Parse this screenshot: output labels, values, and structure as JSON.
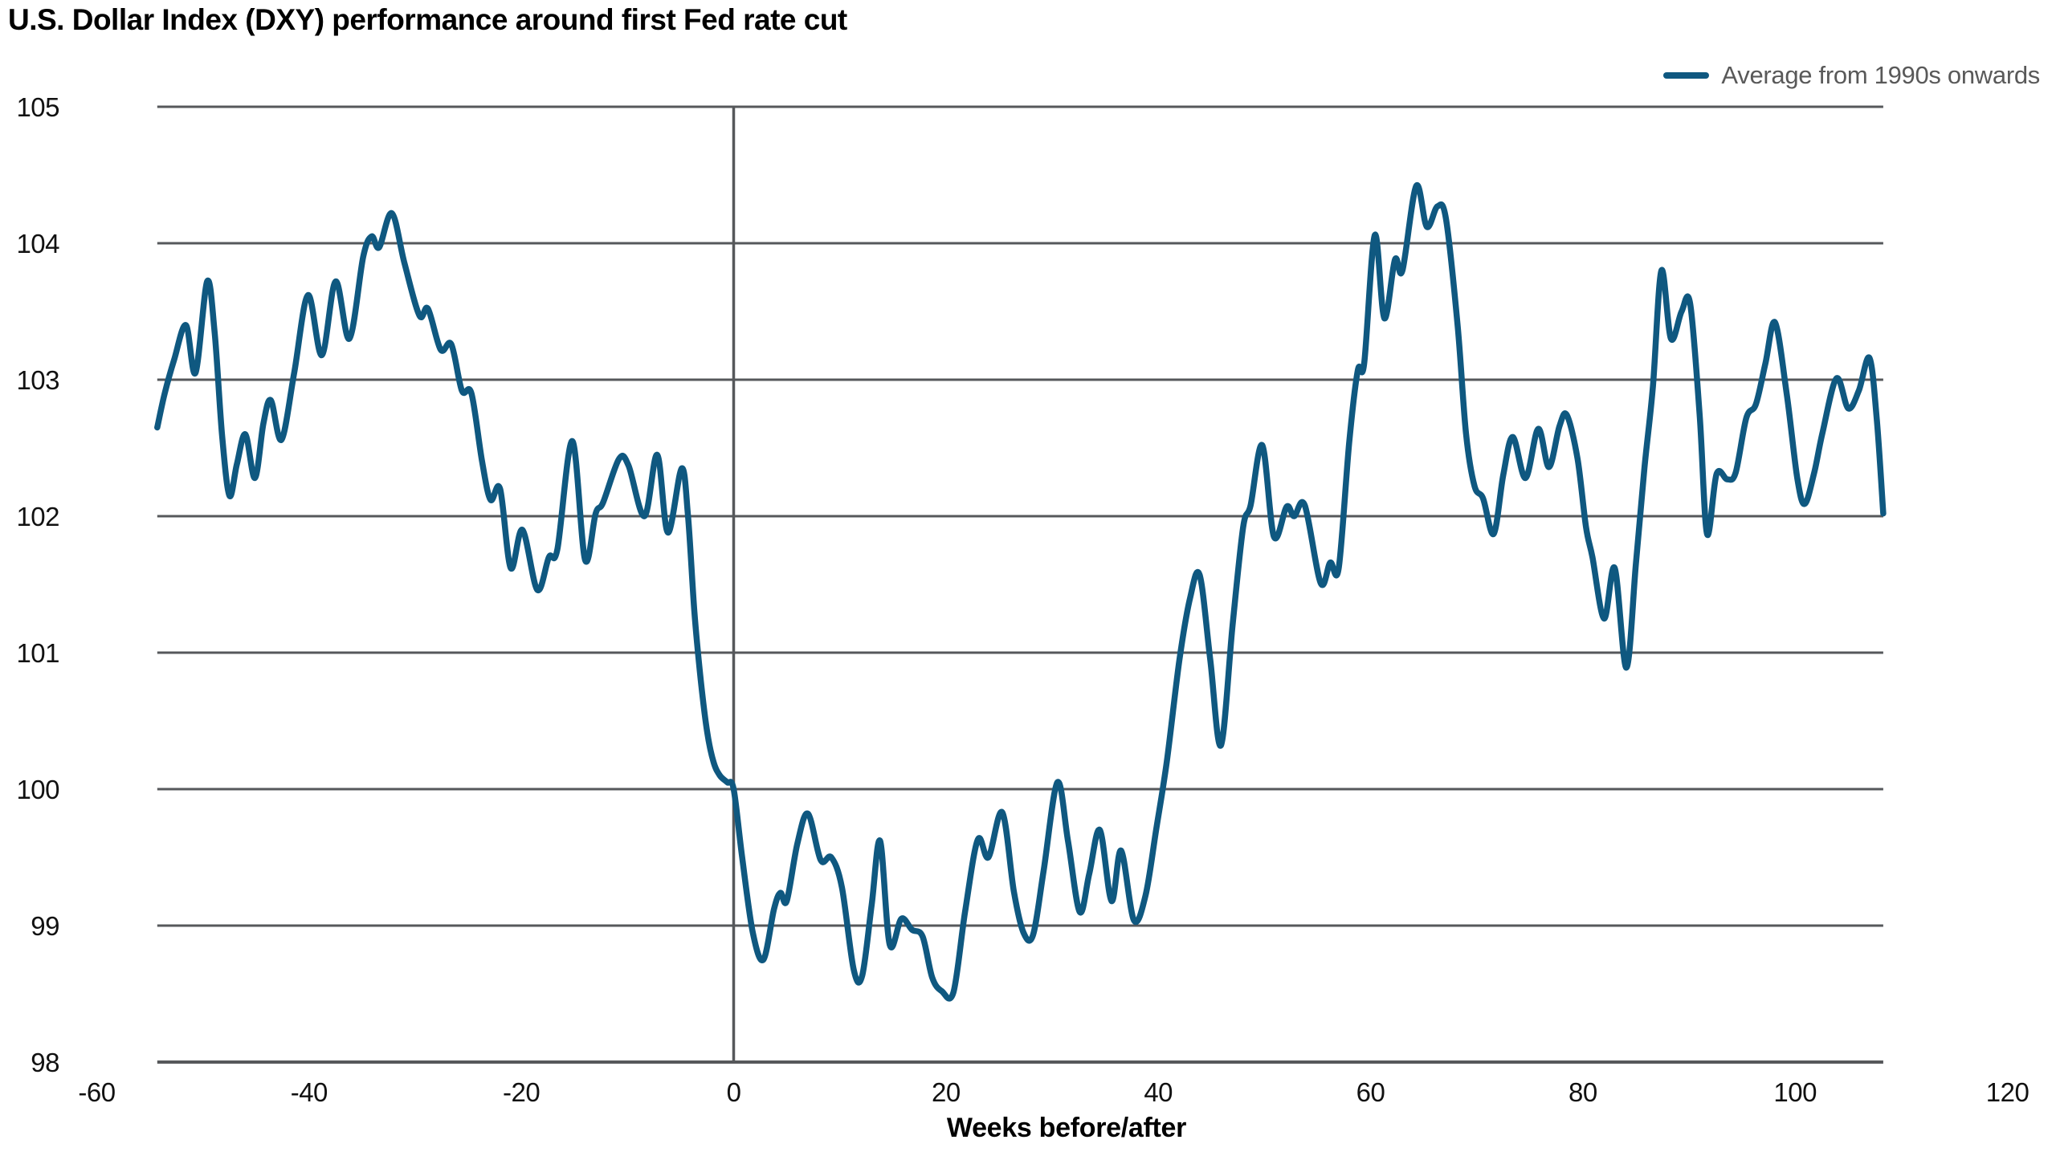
{
  "title": "U.S. Dollar Index (DXY) performance around first Fed rate cut",
  "legend": {
    "label": "Average from 1990s onwards"
  },
  "colors": {
    "line": "#0F5880",
    "grid": "#56585B",
    "axis": "#515457",
    "zero_line": "#56585B",
    "legend_text": "#595959",
    "title_text": "#000000",
    "tick_text": "#111111"
  },
  "chart_data": {
    "type": "line",
    "title": "U.S. Dollar Index (DXY) performance around first Fed rate cut",
    "xlabel": "Weeks before/after",
    "ylabel": "",
    "xlim": [
      -60,
      120
    ],
    "ylim": [
      98,
      105
    ],
    "x_ticks": [
      -60,
      -40,
      -20,
      0,
      20,
      40,
      60,
      80,
      100,
      120
    ],
    "y_ticks": [
      98,
      99,
      100,
      101,
      102,
      103,
      104,
      105
    ],
    "grid": "horizontal",
    "legend_position": "top-right",
    "vertical_reference_line_x": 0,
    "series": [
      {
        "name": "Average from 1990s onwards",
        "points": [
          [
            -54.3,
            102.65
          ],
          [
            -53.6,
            102.9
          ],
          [
            -52.7,
            103.15
          ],
          [
            -51.6,
            103.4
          ],
          [
            -50.7,
            103.05
          ],
          [
            -49.6,
            103.72
          ],
          [
            -48.9,
            103.35
          ],
          [
            -48.2,
            102.6
          ],
          [
            -47.5,
            102.15
          ],
          [
            -46.8,
            102.38
          ],
          [
            -46.0,
            102.6
          ],
          [
            -45.1,
            102.28
          ],
          [
            -44.3,
            102.68
          ],
          [
            -43.6,
            102.85
          ],
          [
            -42.6,
            102.56
          ],
          [
            -41.4,
            103.05
          ],
          [
            -40.1,
            103.62
          ],
          [
            -38.8,
            103.18
          ],
          [
            -37.5,
            103.72
          ],
          [
            -36.2,
            103.3
          ],
          [
            -34.9,
            103.9
          ],
          [
            -34.1,
            104.05
          ],
          [
            -33.4,
            103.97
          ],
          [
            -32.2,
            104.22
          ],
          [
            -31.0,
            103.85
          ],
          [
            -29.6,
            103.47
          ],
          [
            -28.8,
            103.52
          ],
          [
            -27.6,
            103.22
          ],
          [
            -26.6,
            103.26
          ],
          [
            -25.6,
            102.92
          ],
          [
            -24.7,
            102.9
          ],
          [
            -23.7,
            102.4
          ],
          [
            -22.9,
            102.12
          ],
          [
            -22.0,
            102.2
          ],
          [
            -21.0,
            101.62
          ],
          [
            -19.9,
            101.9
          ],
          [
            -18.5,
            101.46
          ],
          [
            -17.4,
            101.7
          ],
          [
            -16.6,
            101.76
          ],
          [
            -15.2,
            102.55
          ],
          [
            -14.0,
            101.68
          ],
          [
            -13.0,
            102.02
          ],
          [
            -12.3,
            102.1
          ],
          [
            -10.8,
            102.42
          ],
          [
            -9.9,
            102.37
          ],
          [
            -8.4,
            102.0
          ],
          [
            -7.2,
            102.45
          ],
          [
            -6.2,
            101.88
          ],
          [
            -4.9,
            102.35
          ],
          [
            -4.3,
            102.0
          ],
          [
            -3.7,
            101.3
          ],
          [
            -3.1,
            100.8
          ],
          [
            -2.5,
            100.42
          ],
          [
            -1.9,
            100.2
          ],
          [
            -1.3,
            100.1
          ],
          [
            -0.6,
            100.05
          ],
          [
            0,
            100.0
          ],
          [
            0.8,
            99.5
          ],
          [
            1.8,
            98.95
          ],
          [
            2.8,
            98.75
          ],
          [
            3.8,
            99.12
          ],
          [
            4.4,
            99.24
          ],
          [
            5.0,
            99.18
          ],
          [
            6.0,
            99.6
          ],
          [
            7.0,
            99.82
          ],
          [
            8.2,
            99.48
          ],
          [
            9.2,
            99.5
          ],
          [
            10.2,
            99.28
          ],
          [
            11.3,
            98.68
          ],
          [
            12.1,
            98.63
          ],
          [
            13.0,
            99.15
          ],
          [
            13.8,
            99.62
          ],
          [
            14.7,
            98.86
          ],
          [
            15.8,
            99.05
          ],
          [
            16.8,
            98.97
          ],
          [
            17.8,
            98.92
          ],
          [
            18.7,
            98.62
          ],
          [
            19.6,
            98.52
          ],
          [
            20.7,
            98.51
          ],
          [
            21.8,
            99.1
          ],
          [
            23.0,
            99.63
          ],
          [
            24.0,
            99.5
          ],
          [
            25.3,
            99.83
          ],
          [
            26.4,
            99.25
          ],
          [
            27.3,
            98.95
          ],
          [
            28.2,
            98.93
          ],
          [
            29.2,
            99.4
          ],
          [
            30.5,
            100.05
          ],
          [
            31.5,
            99.62
          ],
          [
            32.6,
            99.1
          ],
          [
            33.5,
            99.38
          ],
          [
            34.5,
            99.7
          ],
          [
            35.6,
            99.18
          ],
          [
            36.5,
            99.55
          ],
          [
            37.7,
            99.04
          ],
          [
            38.8,
            99.22
          ],
          [
            39.8,
            99.7
          ],
          [
            40.8,
            100.2
          ],
          [
            42.0,
            100.95
          ],
          [
            43.0,
            101.4
          ],
          [
            43.9,
            101.57
          ],
          [
            44.9,
            100.95
          ],
          [
            45.9,
            100.32
          ],
          [
            47.0,
            101.2
          ],
          [
            48.0,
            101.92
          ],
          [
            48.7,
            102.08
          ],
          [
            49.8,
            102.52
          ],
          [
            50.9,
            101.85
          ],
          [
            52.1,
            102.07
          ],
          [
            52.8,
            102.0
          ],
          [
            53.8,
            102.08
          ],
          [
            55.3,
            101.51
          ],
          [
            56.2,
            101.66
          ],
          [
            57.0,
            101.62
          ],
          [
            58.0,
            102.55
          ],
          [
            58.8,
            103.07
          ],
          [
            59.4,
            103.12
          ],
          [
            60.4,
            104.06
          ],
          [
            61.3,
            103.45
          ],
          [
            62.3,
            103.88
          ],
          [
            63.0,
            103.8
          ],
          [
            64.3,
            104.42
          ],
          [
            65.3,
            104.12
          ],
          [
            66.3,
            104.27
          ],
          [
            67.1,
            104.18
          ],
          [
            68.2,
            103.4
          ],
          [
            69.0,
            102.6
          ],
          [
            69.8,
            102.22
          ],
          [
            70.6,
            102.13
          ],
          [
            71.6,
            101.87
          ],
          [
            72.5,
            102.3
          ],
          [
            73.4,
            102.58
          ],
          [
            74.6,
            102.28
          ],
          [
            75.8,
            102.64
          ],
          [
            76.8,
            102.36
          ],
          [
            77.8,
            102.66
          ],
          [
            78.5,
            102.74
          ],
          [
            79.5,
            102.42
          ],
          [
            80.3,
            101.92
          ],
          [
            80.9,
            101.7
          ],
          [
            82.0,
            101.25
          ],
          [
            83.0,
            101.62
          ],
          [
            84.1,
            100.89
          ],
          [
            85.0,
            101.65
          ],
          [
            85.8,
            102.35
          ],
          [
            86.6,
            102.95
          ],
          [
            87.4,
            103.8
          ],
          [
            88.3,
            103.3
          ],
          [
            89.3,
            103.5
          ],
          [
            90.1,
            103.56
          ],
          [
            91.0,
            102.75
          ],
          [
            91.7,
            101.87
          ],
          [
            92.6,
            102.31
          ],
          [
            93.6,
            102.27
          ],
          [
            94.4,
            102.32
          ],
          [
            95.4,
            102.72
          ],
          [
            96.3,
            102.82
          ],
          [
            97.2,
            103.12
          ],
          [
            98.1,
            103.42
          ],
          [
            99.2,
            102.9
          ],
          [
            100.2,
            102.28
          ],
          [
            100.9,
            102.09
          ],
          [
            101.8,
            102.32
          ],
          [
            102.6,
            102.62
          ],
          [
            103.9,
            103.01
          ],
          [
            105.0,
            102.79
          ],
          [
            106.0,
            102.92
          ],
          [
            107.0,
            103.16
          ],
          [
            107.7,
            102.7
          ],
          [
            108.3,
            102.02
          ]
        ]
      }
    ]
  }
}
